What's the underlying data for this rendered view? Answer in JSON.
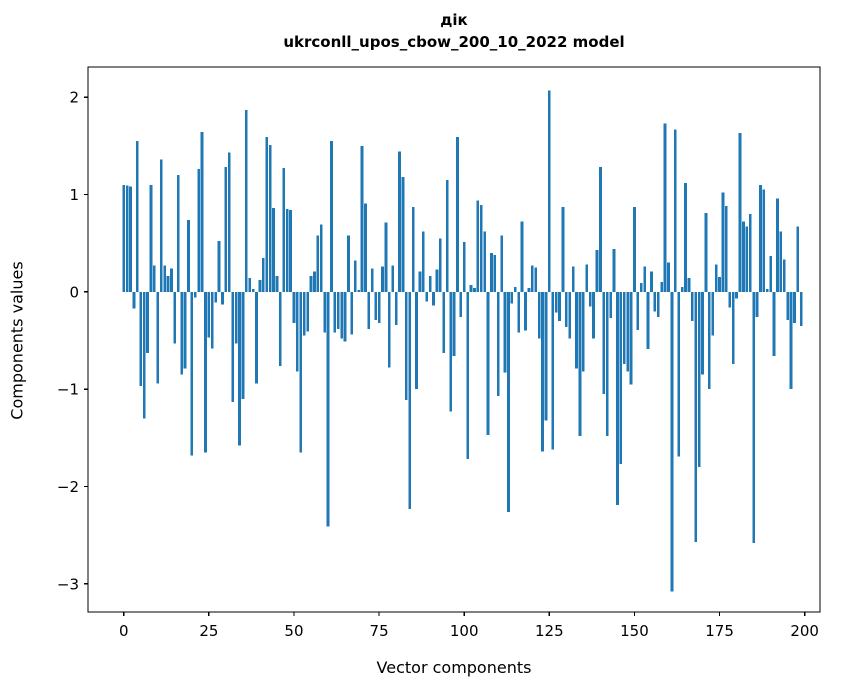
{
  "figure": {
    "title_line1": "дік",
    "title_line2": "ukrconll_upos_cbow_200_10_2022 model",
    "xlabel": "Vector components",
    "ylabel": "Components values"
  },
  "chart_data": {
    "type": "bar",
    "title": "дік — ukrconll_upos_cbow_200_10_2022 model",
    "xlabel": "Vector components",
    "ylabel": "Components values",
    "bar_color": "#1f77b4",
    "background_color": "#ffffff",
    "spine_color": "#000000",
    "grid": false,
    "legend": null,
    "x_start": 0,
    "x_ticks": [
      0,
      25,
      50,
      75,
      100,
      125,
      150,
      175,
      200
    ],
    "x_tick_labels": [
      "0",
      "25",
      "50",
      "75",
      "100",
      "125",
      "150",
      "175",
      "200"
    ],
    "y_ticks": [
      2,
      1,
      0,
      -1,
      -2,
      -3
    ],
    "y_tick_labels": [
      "2",
      "1",
      "0",
      "−1",
      "−2",
      "−3"
    ],
    "xlim": [
      -10.5,
      204.5
    ],
    "ylim": [
      -3.29,
      2.31
    ],
    "values": [
      1.1,
      1.09,
      1.08,
      -0.17,
      1.55,
      -0.97,
      -1.3,
      -0.63,
      1.1,
      0.27,
      -0.94,
      1.36,
      0.27,
      0.16,
      0.24,
      -0.53,
      1.2,
      -0.85,
      -0.79,
      0.74,
      -1.68,
      -0.06,
      1.26,
      1.64,
      -1.65,
      -0.47,
      -0.58,
      -0.11,
      0.52,
      -0.13,
      1.28,
      1.43,
      -1.13,
      -0.53,
      -1.58,
      -1.1,
      1.87,
      0.14,
      0.03,
      -0.94,
      0.12,
      0.35,
      1.59,
      1.51,
      0.86,
      0.16,
      -0.76,
      1.27,
      0.85,
      0.84,
      -0.32,
      -0.82,
      -1.65,
      -0.45,
      -0.41,
      0.16,
      0.21,
      0.58,
      0.69,
      -0.42,
      -2.41,
      1.55,
      -0.42,
      -0.38,
      -0.48,
      -0.51,
      0.58,
      -0.44,
      0.32,
      0.02,
      1.5,
      0.91,
      -0.38,
      0.24,
      -0.29,
      -0.32,
      0.26,
      0.71,
      -0.78,
      0.27,
      -0.34,
      1.44,
      1.18,
      -1.11,
      -2.23,
      0.87,
      -1.0,
      0.21,
      0.62,
      -0.1,
      0.16,
      -0.14,
      0.23,
      0.55,
      -0.63,
      1.15,
      -1.23,
      -0.66,
      1.59,
      -0.26,
      0.51,
      -1.72,
      0.07,
      0.04,
      0.94,
      0.89,
      0.62,
      -1.47,
      0.4,
      0.38,
      -1.07,
      0.58,
      -0.83,
      -2.26,
      -0.12,
      0.05,
      -0.42,
      0.72,
      -0.4,
      0.04,
      0.27,
      0.25,
      -0.48,
      -1.64,
      -1.32,
      2.07,
      -1.62,
      -0.21,
      -0.3,
      0.87,
      -0.36,
      -0.48,
      0.26,
      -0.79,
      -1.48,
      -0.82,
      0.28,
      -0.15,
      -0.48,
      0.43,
      1.28,
      -1.05,
      -1.48,
      -0.27,
      0.44,
      -2.19,
      -1.77,
      -0.74,
      -0.82,
      -0.95,
      0.87,
      -0.39,
      0.09,
      0.26,
      -0.59,
      0.21,
      -0.2,
      -0.26,
      0.1,
      1.73,
      0.3,
      -3.08,
      1.67,
      -1.69,
      0.05,
      1.12,
      0.14,
      -0.3,
      -2.57,
      -1.8,
      -0.85,
      0.81,
      -1.0,
      -0.45,
      0.28,
      0.15,
      1.02,
      0.88,
      -0.16,
      -0.74,
      -0.07,
      1.63,
      0.72,
      0.67,
      0.8,
      -2.58,
      -0.26,
      1.1,
      1.05,
      0.03,
      0.37,
      -0.66,
      0.96,
      0.62,
      0.33,
      -0.29,
      -1.0,
      -0.32,
      0.67,
      -0.35
    ]
  }
}
